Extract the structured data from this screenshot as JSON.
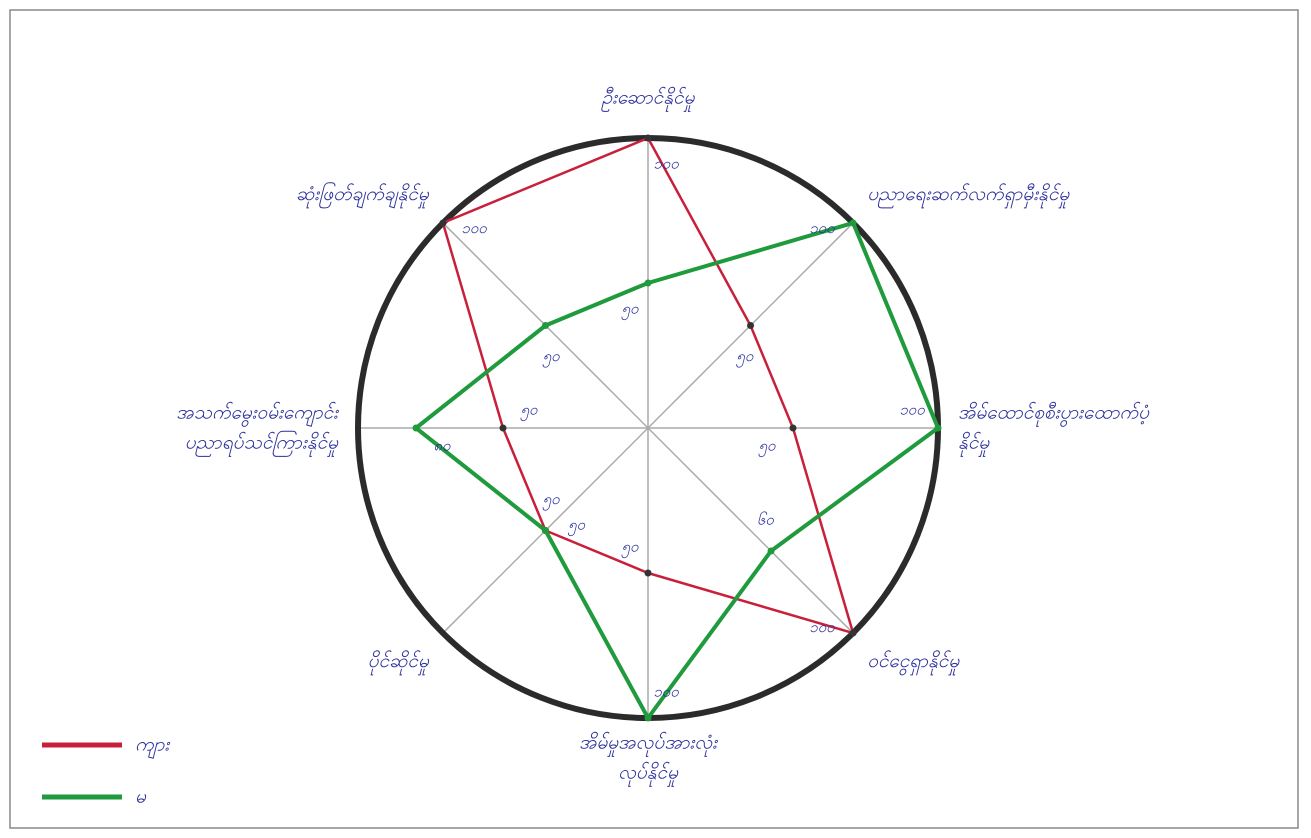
{
  "chart_data": {
    "type": "radar",
    "categories": [
      [
        "ဦးဆောင်နိုင်မှု"
      ],
      [
        "ပညာရေးဆက်လက်ရှာမှီးနိုင်မှု"
      ],
      [
        "အိမ်ထောင်စုစီးပွားထောက်ပံ့",
        "နိုင်မှု"
      ],
      [
        "ဝင်ငွေရှာနိုင်မှု"
      ],
      [
        "အိမ်မှုအလုပ်အားလုံး",
        "လုပ်နိုင်မှု"
      ],
      [
        "ပိုင်ဆိုင်မှု"
      ],
      [
        "အသက်မွေးဝမ်းကျောင်း",
        "ပညာရပ်သင်ကြားနိုင်မှု"
      ],
      [
        "ဆုံးဖြတ်ချက်ချနိုင်မှု"
      ]
    ],
    "rlim": [
      0,
      100
    ],
    "series": [
      {
        "name": "ကျား",
        "color": "#c8203a",
        "values": [
          100,
          50,
          50,
          100,
          50,
          50,
          50,
          100
        ],
        "value_labels": [
          "၁၀၀",
          "၅၀",
          "၅၀",
          "၁၀၀",
          "၅၀",
          "၅၀",
          "၅၀",
          "၁၀၀"
        ]
      },
      {
        "name": "မ",
        "color": "#1f9a3c",
        "values": [
          50,
          100,
          100,
          60,
          100,
          50,
          80,
          50
        ],
        "value_labels": [
          "၅၀",
          "၁၀၀",
          "၁၀၀",
          "၆၀",
          "၁၀၀",
          "၅၀",
          "၈၀",
          "၅၀"
        ]
      }
    ]
  }
}
